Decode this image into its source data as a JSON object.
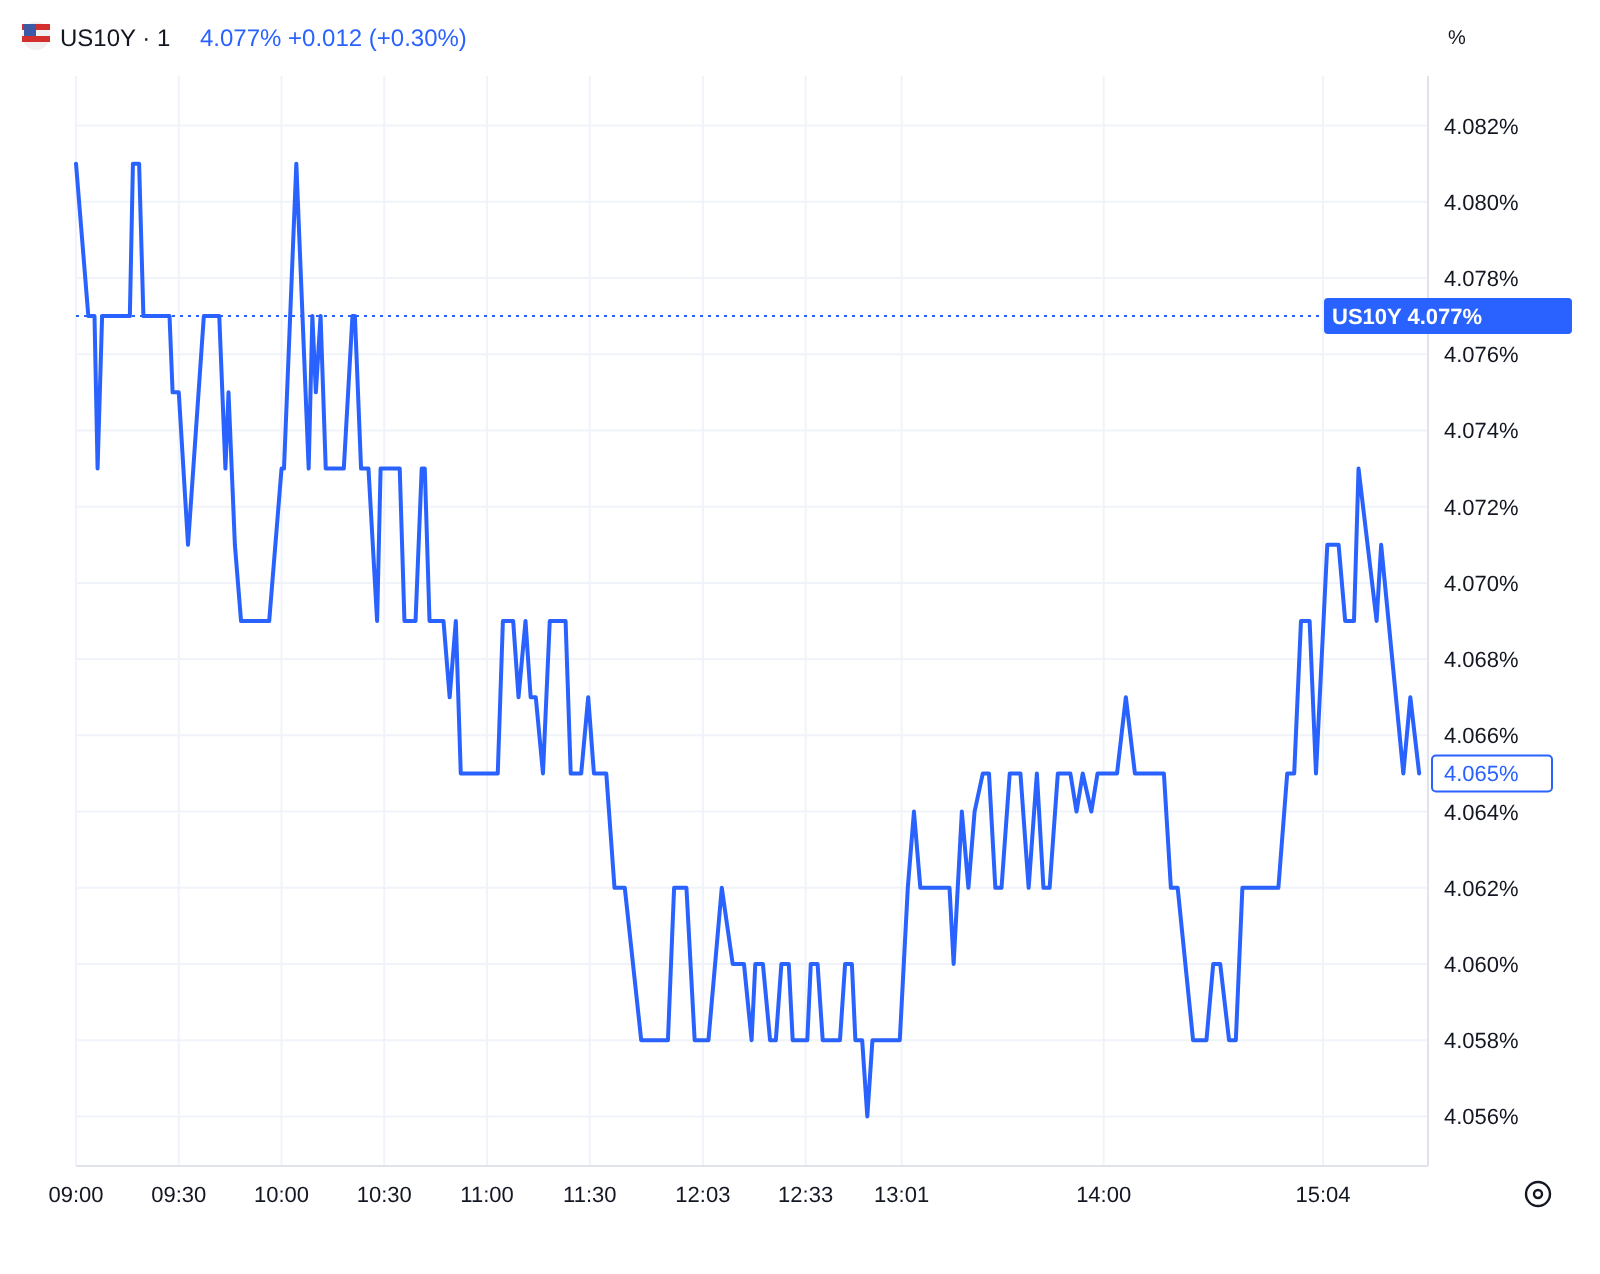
{
  "chart_data": {
    "type": "line",
    "title": "US10Y · 1",
    "subtitle": "4.077% +0.012 (+0.30%)",
    "ylabel": "%",
    "xlim": [
      9,
      15.578
    ],
    "ylim": [
      4.0547,
      4.0833
    ],
    "xticks": [
      {
        "value": 9,
        "label": "09:00"
      },
      {
        "value": 9.5,
        "label": "09:30"
      },
      {
        "value": 10,
        "label": "10:00"
      },
      {
        "value": 10.5,
        "label": "10:30"
      },
      {
        "value": 11,
        "label": "11:00"
      },
      {
        "value": 11.5,
        "label": "11:30"
      },
      {
        "value": 12.05,
        "label": "12:03"
      },
      {
        "value": 12.55,
        "label": "12:33"
      },
      {
        "value": 13.017,
        "label": "13:01"
      },
      {
        "value": 14,
        "label": "14:00"
      },
      {
        "value": 15.067,
        "label": "15:04"
      }
    ],
    "yticks": [
      {
        "value": 4.056,
        "label": "4.056%"
      },
      {
        "value": 4.058,
        "label": "4.058%"
      },
      {
        "value": 4.06,
        "label": "4.060%"
      },
      {
        "value": 4.062,
        "label": "4.062%"
      },
      {
        "value": 4.064,
        "label": "4.064%"
      },
      {
        "value": 4.066,
        "label": "4.066%"
      },
      {
        "value": 4.068,
        "label": "4.068%"
      },
      {
        "value": 4.07,
        "label": "4.070%"
      },
      {
        "value": 4.072,
        "label": "4.072%"
      },
      {
        "value": 4.074,
        "label": "4.074%"
      },
      {
        "value": 4.076,
        "label": "4.076%"
      },
      {
        "value": 4.078,
        "label": "4.078%"
      },
      {
        "value": 4.08,
        "label": "4.080%"
      },
      {
        "value": 4.082,
        "label": "4.082%"
      }
    ],
    "grid": true,
    "marker": "none",
    "line_style": "solid",
    "ref_lines": [
      {
        "axis": "y",
        "value": 4.077,
        "label": "US10Y 4.077%",
        "color": "#2962ff",
        "line_style": "dotted"
      }
    ],
    "series": [
      {
        "color": "#2962ff",
        "x": [
          9,
          9.06,
          9.09,
          9.105,
          9.127,
          9.262,
          9.277,
          9.307,
          9.328,
          9.455,
          9.47,
          9.5,
          9.545,
          9.622,
          9.697,
          9.727,
          9.742,
          9.773,
          9.803,
          9.94,
          10,
          10.012,
          10.072,
          10.132,
          10.15,
          10.167,
          10.19,
          10.215,
          10.303,
          10.345,
          10.357,
          10.387,
          10.423,
          10.465,
          10.482,
          10.575,
          10.598,
          10.652,
          10.682,
          10.697,
          10.72,
          10.788,
          10.818,
          10.848,
          10.872,
          11.052,
          11.077,
          11.127,
          11.153,
          11.187,
          11.212,
          11.237,
          11.272,
          11.305,
          11.382,
          11.407,
          11.458,
          11.492,
          11.52,
          11.58,
          11.62,
          11.67,
          11.75,
          11.88,
          11.91,
          11.97,
          12.01,
          12.077,
          12.142,
          12.195,
          12.25,
          12.287,
          12.305,
          12.342,
          12.377,
          12.405,
          12.432,
          12.468,
          12.487,
          12.558,
          12.575,
          12.608,
          12.633,
          12.717,
          12.742,
          12.775,
          12.792,
          12.825,
          12.85,
          12.875,
          13.008,
          13.047,
          13.077,
          13.108,
          13.25,
          13.27,
          13.31,
          13.342,
          13.372,
          13.412,
          13.442,
          13.473,
          13.503,
          13.543,
          13.595,
          13.635,
          13.675,
          13.707,
          13.737,
          13.777,
          13.838,
          13.868,
          13.898,
          13.94,
          13.97,
          14.065,
          14.108,
          14.152,
          14.293,
          14.327,
          14.36,
          14.435,
          14.5,
          14.533,
          14.567,
          14.61,
          14.643,
          14.675,
          14.85,
          14.893,
          14.927,
          14.96,
          15.002,
          15.033,
          15.088,
          15.143,
          15.175,
          15.218,
          15.24,
          15.328,
          15.35,
          15.458,
          15.492,
          15.535
        ],
        "values": [
          4.081,
          4.077,
          4.077,
          4.073,
          4.077,
          4.077,
          4.081,
          4.081,
          4.077,
          4.077,
          4.075,
          4.075,
          4.071,
          4.077,
          4.077,
          4.073,
          4.075,
          4.071,
          4.069,
          4.069,
          4.073,
          4.073,
          4.081,
          4.073,
          4.077,
          4.075,
          4.077,
          4.073,
          4.073,
          4.077,
          4.077,
          4.073,
          4.073,
          4.069,
          4.073,
          4.073,
          4.069,
          4.069,
          4.073,
          4.073,
          4.069,
          4.069,
          4.067,
          4.069,
          4.065,
          4.065,
          4.069,
          4.069,
          4.067,
          4.069,
          4.067,
          4.067,
          4.065,
          4.069,
          4.069,
          4.065,
          4.065,
          4.067,
          4.065,
          4.065,
          4.062,
          4.062,
          4.058,
          4.058,
          4.062,
          4.062,
          4.058,
          4.058,
          4.062,
          4.06,
          4.06,
          4.058,
          4.06,
          4.06,
          4.058,
          4.058,
          4.06,
          4.06,
          4.058,
          4.058,
          4.06,
          4.06,
          4.058,
          4.058,
          4.06,
          4.06,
          4.058,
          4.058,
          4.056,
          4.058,
          4.058,
          4.062,
          4.064,
          4.062,
          4.062,
          4.06,
          4.064,
          4.062,
          4.064,
          4.065,
          4.065,
          4.062,
          4.062,
          4.065,
          4.065,
          4.062,
          4.065,
          4.062,
          4.062,
          4.065,
          4.065,
          4.064,
          4.065,
          4.064,
          4.065,
          4.065,
          4.067,
          4.065,
          4.065,
          4.062,
          4.062,
          4.058,
          4.058,
          4.06,
          4.06,
          4.058,
          4.058,
          4.062,
          4.062,
          4.065,
          4.065,
          4.069,
          4.069,
          4.065,
          4.071,
          4.071,
          4.069,
          4.069,
          4.073,
          4.069,
          4.071,
          4.065,
          4.067,
          4.065
        ],
        "value_labels": [
          null,
          null,
          null,
          null,
          null,
          null,
          null,
          null,
          null,
          null,
          null,
          null,
          null,
          null,
          null,
          null,
          null,
          null,
          null,
          null,
          null,
          null,
          null,
          null,
          null,
          null,
          null,
          null,
          null,
          null,
          null,
          null,
          null,
          null,
          null,
          null,
          null,
          null,
          null,
          null,
          null,
          null,
          null,
          null,
          null,
          null,
          null,
          null,
          null,
          null,
          null,
          null,
          null,
          null,
          null,
          null,
          null,
          null,
          null,
          null,
          null,
          null,
          null,
          null,
          null,
          null,
          null,
          null,
          null,
          null,
          null,
          null,
          null,
          null,
          null,
          null,
          null,
          null,
          null,
          null,
          null,
          null,
          null,
          null,
          null,
          null,
          null,
          null,
          null,
          null,
          null,
          null,
          null,
          null,
          null,
          null,
          null,
          null,
          null,
          null,
          null,
          null,
          null,
          null,
          null,
          null,
          null,
          null,
          null,
          null,
          null,
          null,
          null,
          null,
          null,
          null,
          null,
          null,
          null,
          null,
          null,
          null,
          null,
          null,
          null,
          null,
          null,
          null,
          null,
          null,
          null,
          null,
          null,
          null,
          null,
          null,
          null,
          null,
          null,
          null,
          null,
          null,
          null,
          "4.065%"
        ]
      }
    ]
  }
}
